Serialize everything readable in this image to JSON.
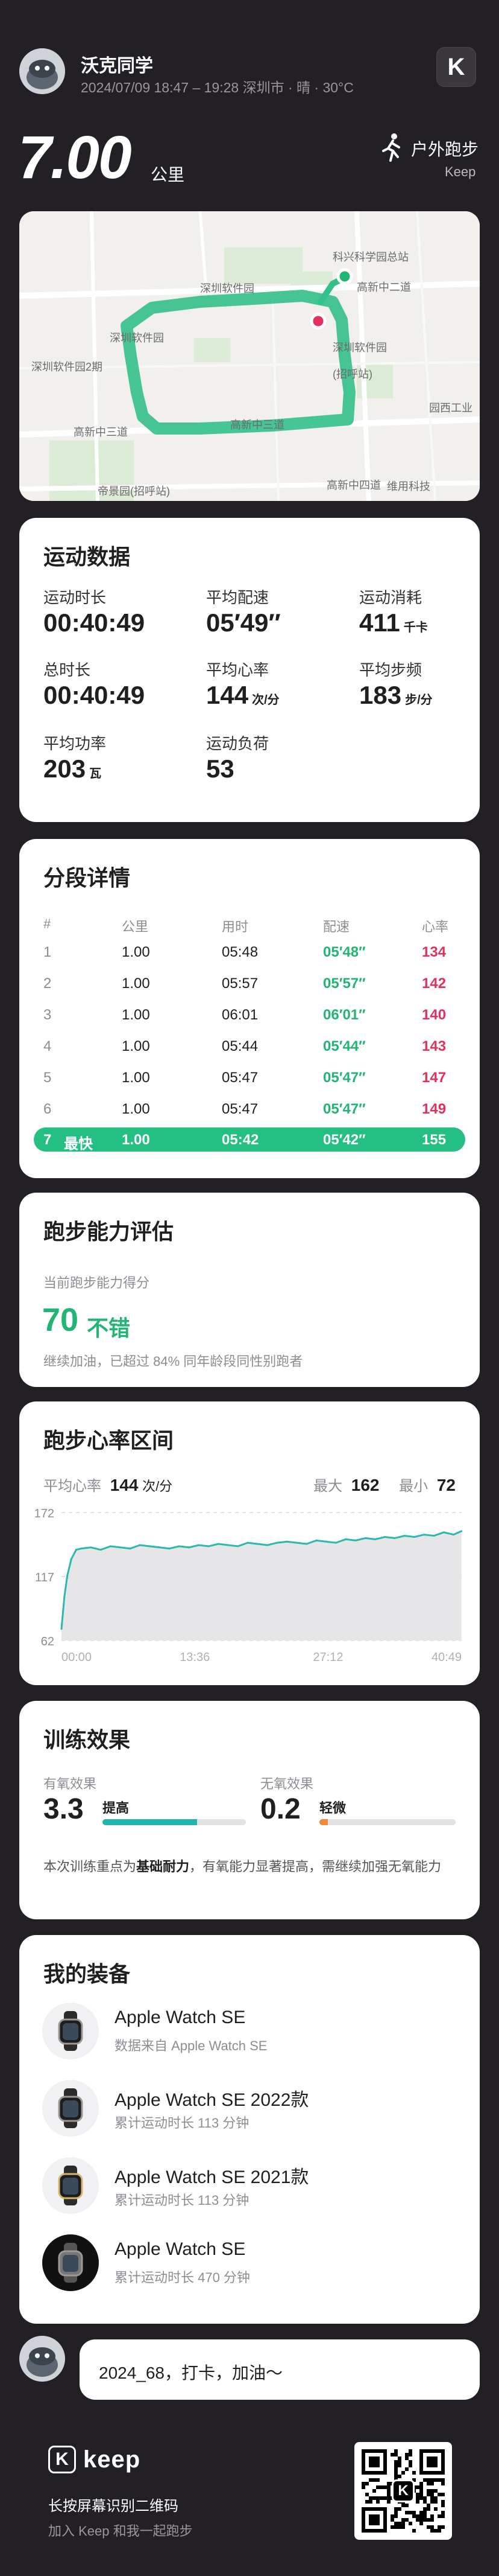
{
  "header": {
    "username": "沃克同学",
    "meta": "2024/07/09 18:47 – 19:28 深圳市 · 晴 · 30°C",
    "app_badge": "K"
  },
  "summary": {
    "distance": "7.00",
    "distance_unit": "公里",
    "activity_type": "户外跑步",
    "brand": "Keep",
    "activity_icon": "runner-icon"
  },
  "map": {
    "labels": [
      "科兴科学园总站",
      "高新中二道",
      "深圳软件园",
      "深圳软件园",
      "深圳软件园2期",
      "深圳软件园",
      "高新中三道",
      "高新中三道",
      "高新中四道",
      "园西工业",
      "帝景园(招呼站)",
      "维用科技",
      "(招呼站)"
    ]
  },
  "stats": {
    "title": "运动数据",
    "items": [
      {
        "label": "运动时长",
        "value": "00:40:49",
        "unit": ""
      },
      {
        "label": "平均配速",
        "value": "05′49″",
        "unit": ""
      },
      {
        "label": "运动消耗",
        "value": "411",
        "unit": "千卡"
      },
      {
        "label": "总时长",
        "value": "00:40:49",
        "unit": ""
      },
      {
        "label": "平均心率",
        "value": "144",
        "unit": "次/分"
      },
      {
        "label": "平均步频",
        "value": "183",
        "unit": "步/分"
      },
      {
        "label": "平均功率",
        "value": "203",
        "unit": "瓦"
      },
      {
        "label": "运动负荷",
        "value": "53",
        "unit": ""
      }
    ]
  },
  "splits": {
    "title": "分段详情",
    "headers": [
      "#",
      "公里",
      "用时",
      "配速",
      "心率"
    ],
    "rows": [
      {
        "n": "1",
        "km": "1.00",
        "time": "05:48",
        "pace": "05′48″",
        "hr": "134"
      },
      {
        "n": "2",
        "km": "1.00",
        "time": "05:57",
        "pace": "05′57″",
        "hr": "142"
      },
      {
        "n": "3",
        "km": "1.00",
        "time": "06:01",
        "pace": "06′01″",
        "hr": "140"
      },
      {
        "n": "4",
        "km": "1.00",
        "time": "05:44",
        "pace": "05′44″",
        "hr": "143"
      },
      {
        "n": "5",
        "km": "1.00",
        "time": "05:47",
        "pace": "05′47″",
        "hr": "147"
      },
      {
        "n": "6",
        "km": "1.00",
        "time": "05:47",
        "pace": "05′47″",
        "hr": "149"
      }
    ],
    "fastest": {
      "n": "7",
      "tag": "最快",
      "km": "1.00",
      "time": "05:42",
      "pace": "05′42″",
      "hr": "155"
    }
  },
  "ability": {
    "title": "跑步能力评估",
    "sub": "当前跑步能力得分",
    "score": "70",
    "grade": "不错",
    "desc": "继续加油，已超过 84% 同年龄段同性别跑者"
  },
  "heart": {
    "title": "跑步心率区间",
    "avg_label": "平均心率",
    "avg_value": "144",
    "avg_unit": "次/分",
    "max_label": "最大",
    "max_value": "162",
    "min_label": "最小",
    "min_value": "72",
    "colors": {
      "line": "#2bb8b0",
      "fill": "#e6e6e8"
    }
  },
  "chart_data": {
    "type": "line",
    "title": "跑步心率区间",
    "xlabel": "",
    "ylabel": "",
    "y_ticks": [
      "172",
      "117",
      "62"
    ],
    "x_ticks": [
      "00:00",
      "13:36",
      "27:12",
      "40:49"
    ],
    "ylim": [
      62,
      172
    ],
    "xlim": [
      0,
      40.82
    ],
    "x": [
      0,
      0.3,
      0.6,
      1,
      1.5,
      2,
      3,
      4,
      5,
      6,
      7,
      8,
      9,
      10,
      11,
      12,
      13,
      14,
      15,
      16,
      17,
      18,
      19,
      20,
      21,
      22,
      23,
      24,
      25,
      26,
      27,
      28,
      29,
      30,
      31,
      32,
      33,
      34,
      35,
      36,
      37,
      38,
      39,
      40,
      40.8
    ],
    "series": [
      {
        "name": "心率",
        "values": [
          72,
          100,
          118,
          132,
          140,
          141,
          142,
          140,
          143,
          142,
          141,
          144,
          143,
          142,
          141,
          143,
          142,
          144,
          143,
          145,
          144,
          143,
          146,
          145,
          144,
          146,
          147,
          146,
          145,
          148,
          147,
          146,
          149,
          148,
          150,
          149,
          151,
          150,
          152,
          151,
          153,
          152,
          155,
          153,
          156
        ]
      }
    ]
  },
  "training": {
    "title": "训练效果",
    "aerobic_label": "有氧效果",
    "aerobic_value": "3.3",
    "aerobic_level": "提高",
    "aerobic_fraction": 0.66,
    "anaerobic_label": "无氧效果",
    "anaerobic_value": "0.2",
    "anaerobic_level": "轻微",
    "anaerobic_fraction": 0.04,
    "desc_prefix": "本次训练重点为",
    "desc_bold": "基础耐力",
    "desc_suffix": "，有氧能力显著提高，需继续加强无氧能力"
  },
  "gear": {
    "title": "我的装备",
    "items": [
      {
        "name": "Apple Watch SE",
        "sub": "数据来自 Apple Watch SE",
        "icon": "watch-icon"
      },
      {
        "name": "Apple Watch SE 2022款",
        "sub": "累计运动时长 113 分钟",
        "icon": "watch-icon"
      },
      {
        "name": "Apple Watch SE 2021款",
        "sub": "累计运动时长 113 分钟",
        "icon": "watch-icon"
      },
      {
        "name": "Apple Watch SE",
        "sub": "累计运动时长 470 分钟",
        "icon": "watch-icon"
      }
    ]
  },
  "comment": {
    "text": "2024_68，打卡，加油～"
  },
  "footer": {
    "logo_text": "keep",
    "scan_text": "长按屏幕识别二维码",
    "join_text": "加入 Keep 和我一起跑步",
    "qr_center": "K"
  }
}
